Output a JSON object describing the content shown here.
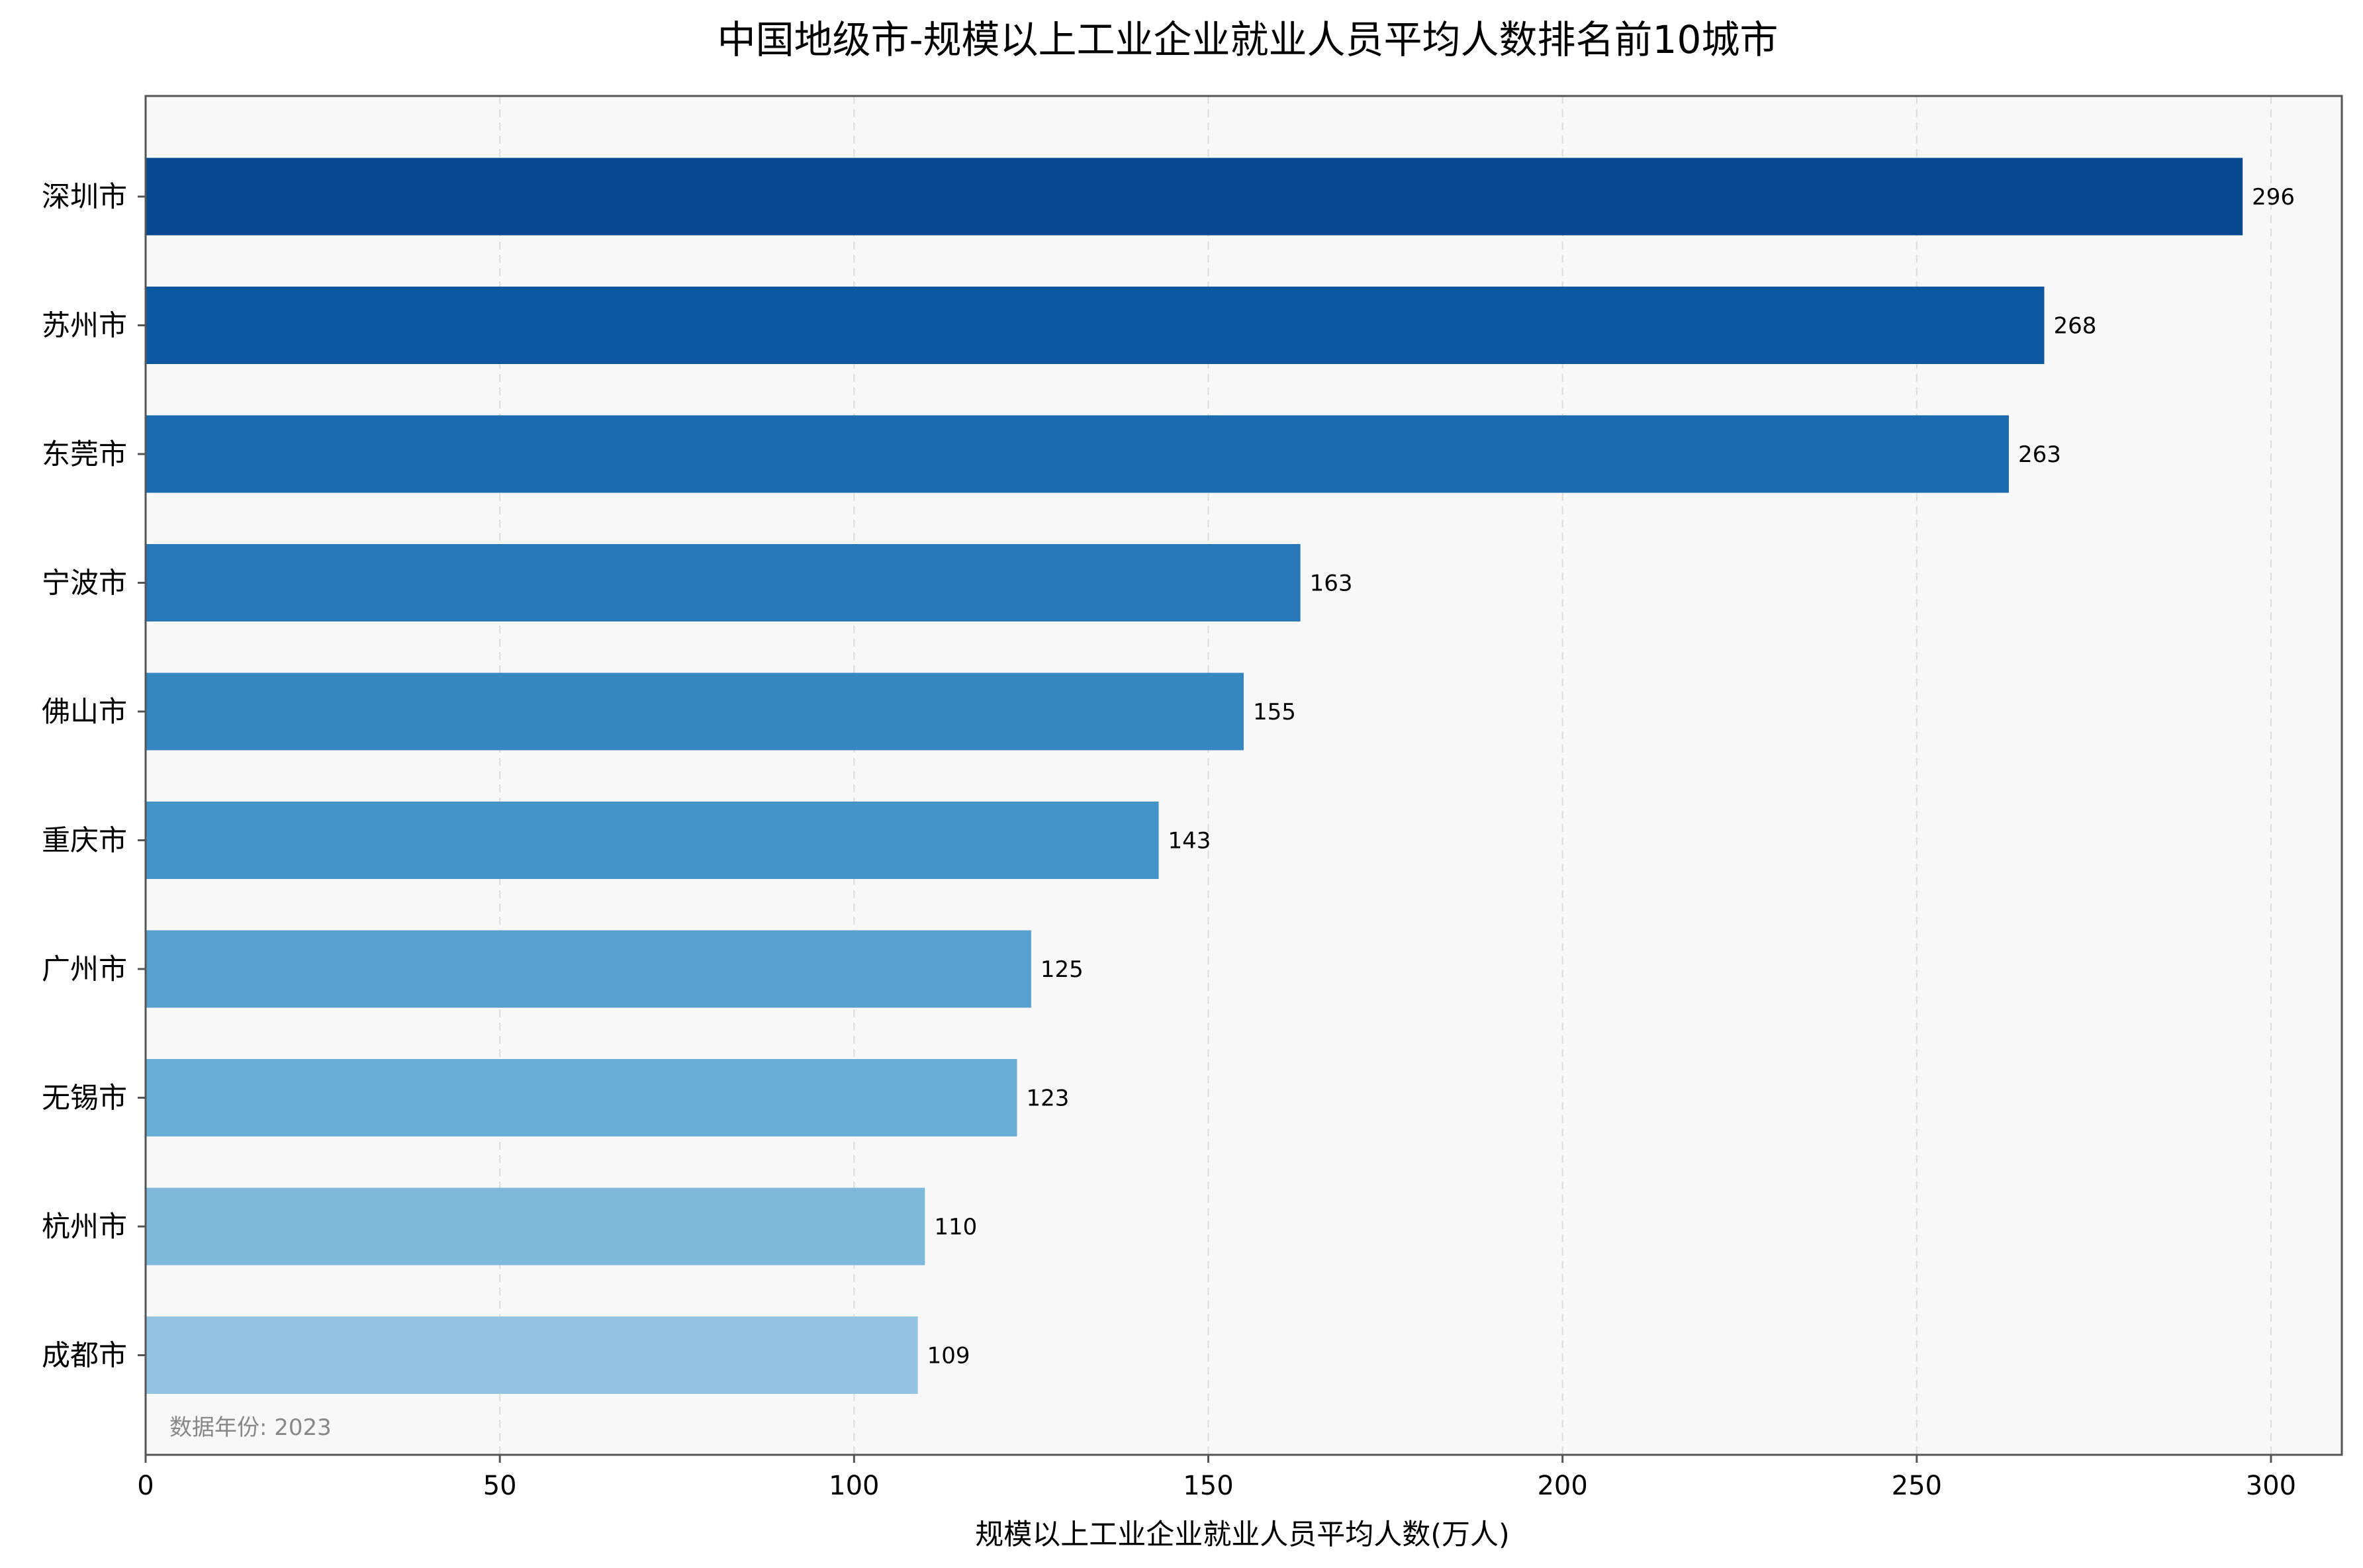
{
  "chart_data": {
    "type": "bar",
    "orientation": "horizontal",
    "title": "中国地级市-规模以上工业企业就业人员平均人数排名前10城市",
    "xlabel": "规模以上工业企业就业人员平均人数(万人)",
    "ylabel": "",
    "xlim": [
      0,
      310
    ],
    "xticks": [
      0,
      50,
      100,
      150,
      200,
      250,
      300
    ],
    "grid": "vertical dashed",
    "categories": [
      "深圳市",
      "苏州市",
      "东莞市",
      "宁波市",
      "佛山市",
      "重庆市",
      "广州市",
      "无锡市",
      "杭州市",
      "成都市"
    ],
    "values": [
      296,
      268,
      263,
      163,
      155,
      143,
      125,
      123,
      110,
      109
    ],
    "value_labels": [
      "296",
      "268",
      "263",
      "163",
      "155",
      "143",
      "125",
      "123",
      "110",
      "109"
    ],
    "colors": [
      "#08488e",
      "#0e58a2",
      "#1b69af",
      "#2878b8",
      "#3686c0",
      "#4594c7",
      "#58a1cf",
      "#6aaed6",
      "#7fb9da",
      "#94c4df"
    ],
    "note": "数据年份: 2023",
    "plot_background": "#f8f8f8",
    "axis_color": "#555555",
    "grid_color": "#dddddd"
  }
}
